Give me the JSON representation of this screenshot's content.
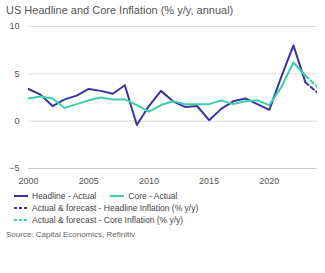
{
  "chart_data": {
    "type": "line",
    "title": "US Headline and Core Inflation (% y/y, annual)",
    "source": "Source: Capital Economics, Refinitiv",
    "x": [
      2000,
      2001,
      2002,
      2003,
      2004,
      2005,
      2006,
      2007,
      2008,
      2009,
      2010,
      2011,
      2012,
      2013,
      2014,
      2015,
      2016,
      2017,
      2018,
      2019,
      2020,
      2021,
      2022,
      2023,
      2024
    ],
    "xlim": [
      2000,
      2024
    ],
    "xticks": [
      2000,
      2005,
      2010,
      2015,
      2020
    ],
    "ylim": [
      -5,
      10
    ],
    "yticks": [
      -5,
      0,
      5,
      10
    ],
    "grid": true,
    "series": [
      {
        "name": "Headline - Actual",
        "color": "#3b369c",
        "line_style": "solid",
        "values": [
          3.4,
          2.8,
          1.6,
          2.3,
          2.7,
          3.4,
          3.2,
          2.9,
          3.8,
          -0.4,
          1.6,
          3.2,
          2.1,
          1.5,
          1.6,
          0.1,
          1.3,
          2.1,
          2.4,
          1.8,
          1.2,
          4.7,
          8.0,
          4.1,
          null
        ]
      },
      {
        "name": "Core - Actual",
        "color": "#3ccfae",
        "line_style": "solid",
        "values": [
          2.4,
          2.6,
          2.4,
          1.4,
          1.8,
          2.2,
          2.5,
          2.3,
          2.3,
          1.7,
          1.0,
          1.7,
          2.1,
          1.8,
          1.8,
          1.8,
          2.2,
          1.8,
          2.1,
          2.2,
          1.7,
          3.6,
          6.2,
          4.8,
          null
        ]
      },
      {
        "name": "Actual & forecast - Headline Inflation (% y/y)",
        "color": "#3b369c",
        "line_style": "dashed",
        "values": [
          null,
          null,
          null,
          null,
          null,
          null,
          null,
          null,
          null,
          null,
          null,
          null,
          null,
          null,
          null,
          null,
          null,
          null,
          null,
          null,
          null,
          null,
          null,
          4.1,
          3.0
        ]
      },
      {
        "name": "Actual & forecast - Core Inflation (% y/y)",
        "color": "#3ccfae",
        "line_style": "dashed",
        "values": [
          null,
          null,
          null,
          null,
          null,
          null,
          null,
          null,
          null,
          null,
          null,
          null,
          null,
          null,
          null,
          null,
          null,
          null,
          null,
          null,
          null,
          null,
          null,
          4.8,
          3.6
        ]
      }
    ]
  }
}
